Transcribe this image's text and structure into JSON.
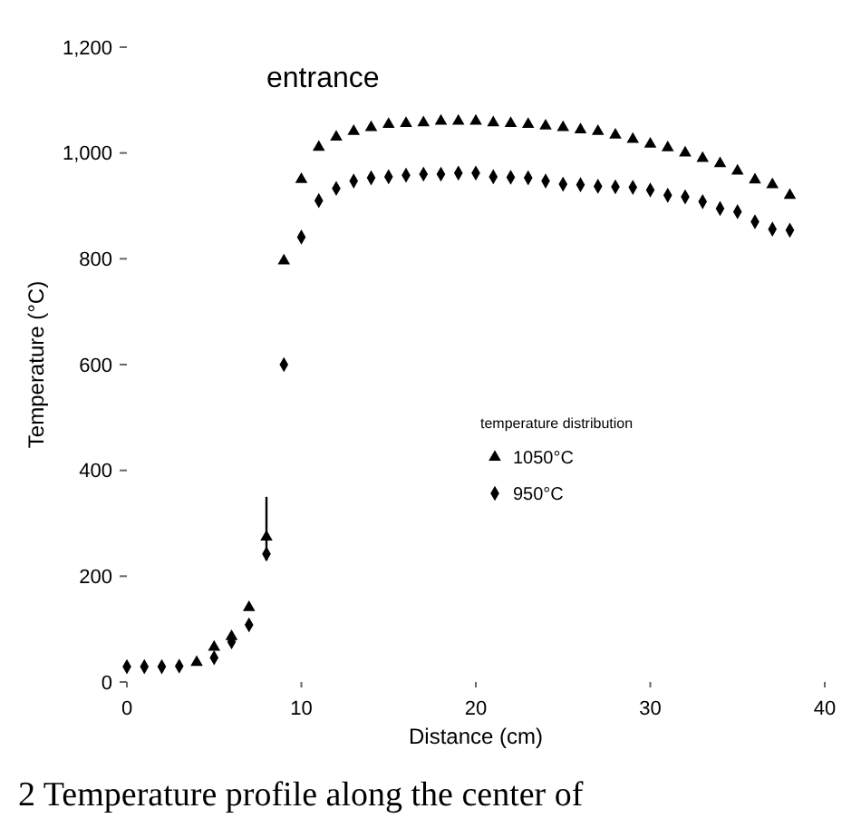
{
  "chart_data": {
    "type": "scatter",
    "title": "entrance",
    "xlabel": "Distance (cm)",
    "ylabel": "Temperature (°C)",
    "legend_title": "temperature distribution",
    "legend": "right",
    "annotations": [
      "2 Temperature profile along the center of"
    ],
    "xlim": [
      0,
      40
    ],
    "xticks": [
      0,
      10,
      20,
      30,
      40
    ],
    "ylim": [
      0,
      1200
    ],
    "yticks": [
      0,
      200,
      400,
      600,
      800,
      {
        "value": 1000,
        "label": "1,000"
      },
      {
        "value": 1200,
        "label": "1,200"
      }
    ],
    "grid": false,
    "x": [
      0,
      1,
      2,
      3,
      4,
      5,
      6,
      7,
      8,
      9,
      10,
      11,
      12,
      13,
      14,
      15,
      16,
      17,
      18,
      19,
      20,
      21,
      22,
      23,
      24,
      25,
      26,
      27,
      28,
      29,
      30,
      31,
      32,
      33,
      34,
      35,
      36,
      37,
      38
    ],
    "series": [
      {
        "name": "1050°C",
        "color": "#000000",
        "marker": "triangle",
        "values": [
          null,
          null,
          null,
          null,
          37,
          66,
          86,
          141,
          274,
          796,
          950,
          1011,
          1030,
          1041,
          1048,
          1054,
          1056,
          1057,
          1060,
          1060,
          1060,
          1057,
          1056,
          1054,
          1051,
          1048,
          1044,
          1041,
          1034,
          1026,
          1017,
          1010,
          1000,
          990,
          980,
          966,
          949,
          940,
          920
        ],
        "errors": [
          null,
          null,
          null,
          null,
          null,
          null,
          null,
          null,
          [
            230,
            350
          ],
          null,
          null,
          null,
          null,
          null,
          null,
          null,
          null,
          null,
          null,
          null,
          null,
          null,
          null,
          null,
          null,
          null,
          null,
          null,
          null,
          null,
          null,
          null,
          null,
          null,
          null,
          null,
          null,
          null,
          null
        ]
      },
      {
        "name": "950°C",
        "color": "#000000",
        "marker": "diamond",
        "values": [
          29,
          29,
          29,
          30,
          null,
          46,
          76,
          108,
          242,
          600,
          841,
          910,
          933,
          947,
          953,
          955,
          958,
          960,
          960,
          962,
          962,
          955,
          954,
          953,
          947,
          941,
          940,
          937,
          936,
          935,
          930,
          920,
          917,
          908,
          895,
          889,
          870,
          856,
          854
        ]
      }
    ]
  }
}
